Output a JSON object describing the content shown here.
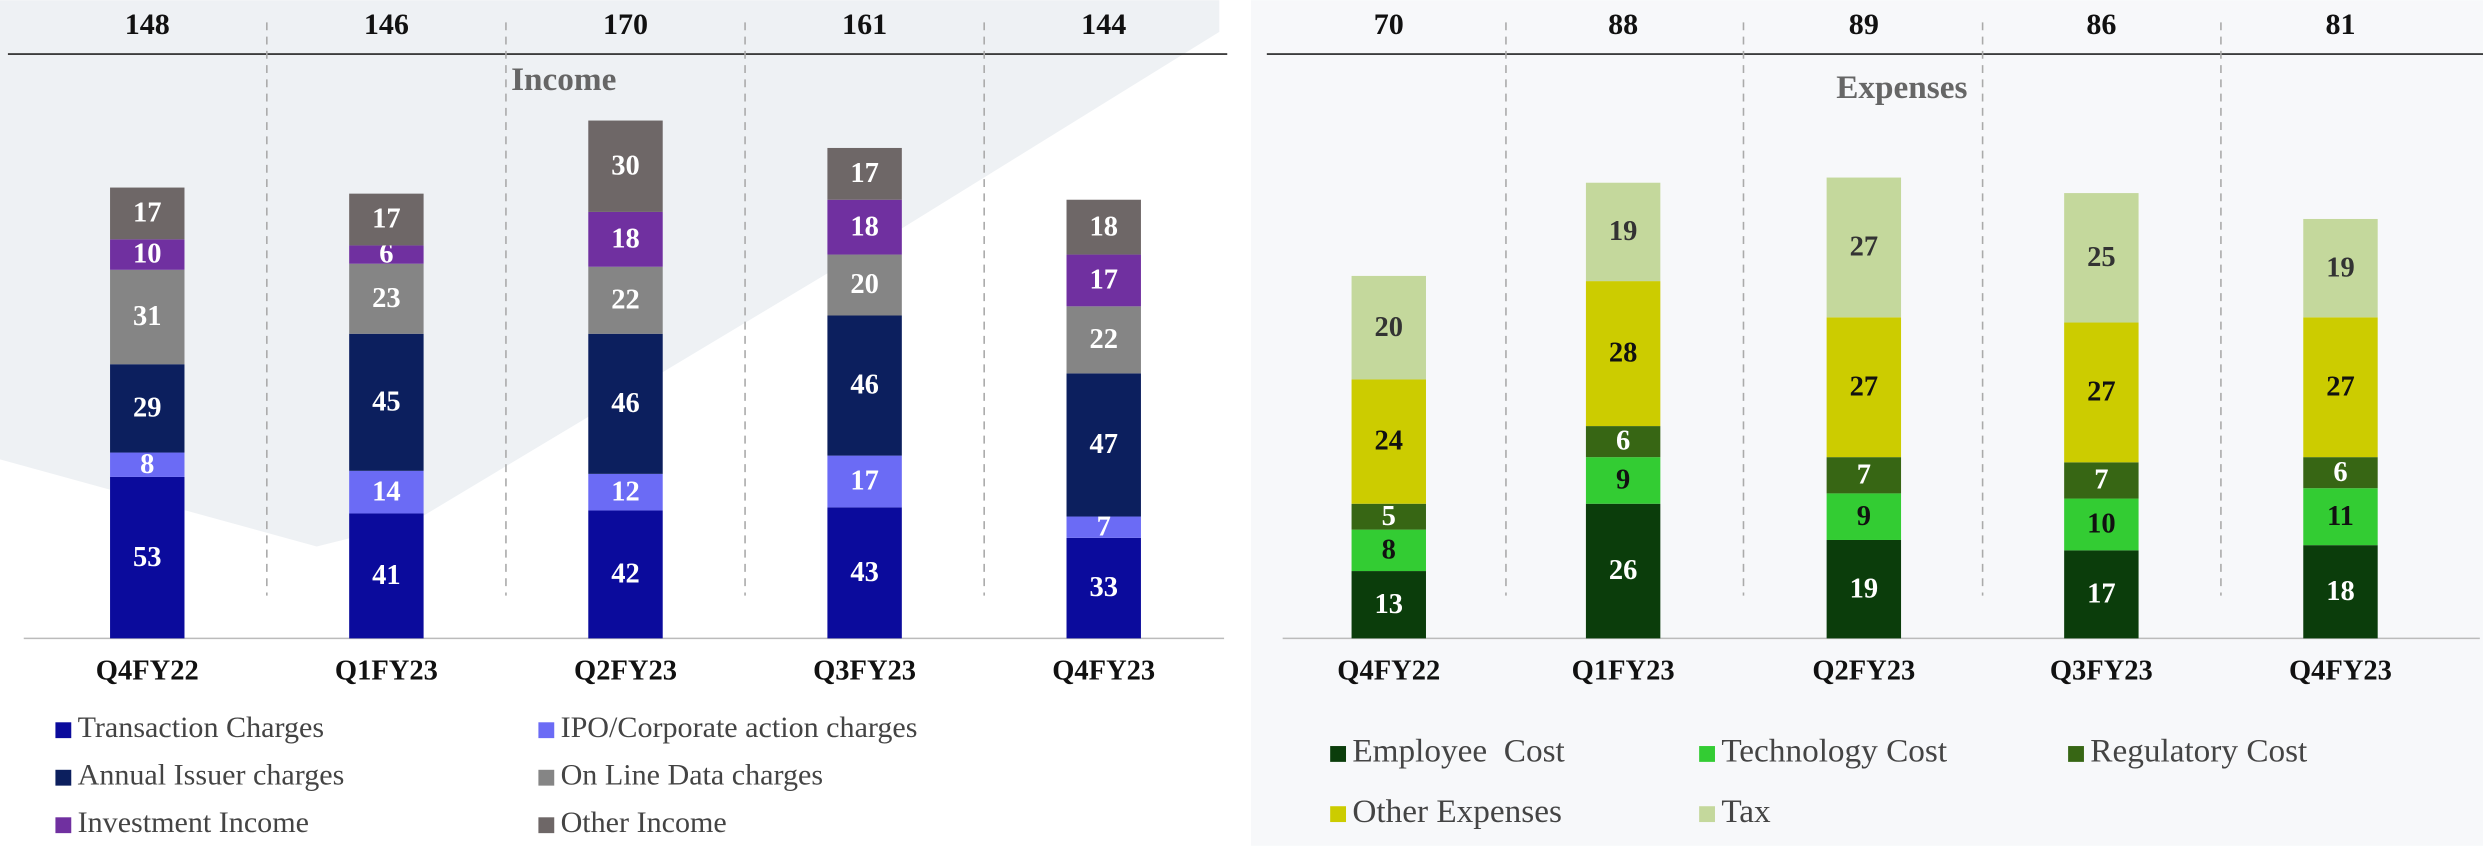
{
  "chart_data": [
    {
      "type": "stacked_bar",
      "title": "Income",
      "categories": [
        "Q4FY22",
        "Q1FY23",
        "Q2FY23",
        "Q3FY23",
        "Q4FY23"
      ],
      "totals": [
        148,
        146,
        170,
        161,
        144
      ],
      "series": [
        {
          "name": "Transaction Charges",
          "color": "#0b0b9c",
          "label_color": "#ffffff",
          "values": [
            53,
            41,
            42,
            43,
            33
          ]
        },
        {
          "name": "IPO/Corporate action charges",
          "color": "#6b6bf5",
          "label_color": "#ffffff",
          "values": [
            8,
            14,
            12,
            17,
            7
          ]
        },
        {
          "name": "Annual Issuer charges",
          "color": "#0c1f5e",
          "label_color": "#ffffff",
          "values": [
            29,
            45,
            46,
            46,
            47
          ]
        },
        {
          "name": "On Line Data charges",
          "color": "#858585",
          "label_color": "#ffffff",
          "values": [
            31,
            23,
            22,
            20,
            22
          ]
        },
        {
          "name": "Investment Income",
          "color": "#7030a0",
          "label_color": "#ffffff",
          "values": [
            10,
            6,
            18,
            18,
            17
          ]
        },
        {
          "name": "Other Income",
          "color": "#6e6767",
          "label_color": "#ffffff",
          "values": [
            17,
            17,
            30,
            17,
            18
          ]
        }
      ]
    },
    {
      "type": "stacked_bar",
      "title": "Expenses",
      "categories": [
        "Q4FY22",
        "Q1FY23",
        "Q2FY23",
        "Q3FY23",
        "Q4FY23"
      ],
      "totals": [
        70,
        88,
        89,
        86,
        81
      ],
      "series": [
        {
          "name": "Employee  Cost",
          "color": "#0b3d0b",
          "label_color": "#ffffff",
          "values": [
            13,
            26,
            19,
            17,
            18
          ]
        },
        {
          "name": "Technology Cost",
          "color": "#33cc33",
          "label_color": "#111111",
          "values": [
            8,
            9,
            9,
            10,
            11
          ]
        },
        {
          "name": "Regulatory Cost",
          "color": "#376614",
          "label_color": "#ffffff",
          "values": [
            5,
            6,
            7,
            7,
            6
          ]
        },
        {
          "name": "Other Expenses",
          "color": "#cccc00",
          "label_color": "#111111",
          "values": [
            24,
            28,
            27,
            27,
            27
          ]
        },
        {
          "name": "Tax",
          "color": "#c4d89c",
          "label_color": "#333333",
          "values": [
            20,
            19,
            27,
            25,
            19
          ]
        }
      ]
    }
  ]
}
